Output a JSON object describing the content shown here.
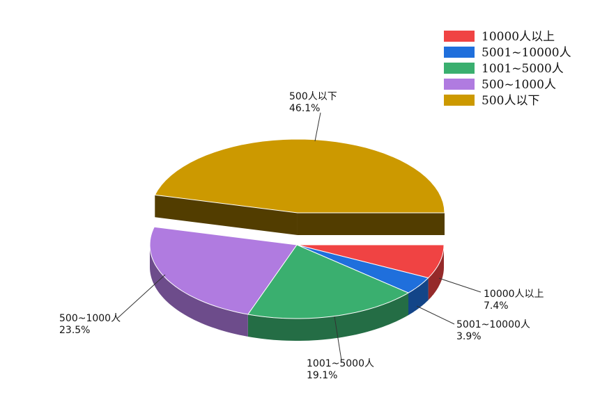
{
  "chart_data": {
    "type": "pie3d",
    "categories": [
      "10000人以上",
      "5001~10000人",
      "1001~5000人",
      "500~1000人",
      "500人以下"
    ],
    "values": [
      7.4,
      3.9,
      19.1,
      23.5,
      46.1
    ],
    "value_labels": [
      "7.4%",
      "3.9%",
      "19.1%",
      "23.5%",
      "46.1%"
    ],
    "colors": [
      "#f04343",
      "#1f6fdc",
      "#3aaf6f",
      "#b07be0",
      "#cc9900"
    ],
    "legend": "top-right"
  }
}
